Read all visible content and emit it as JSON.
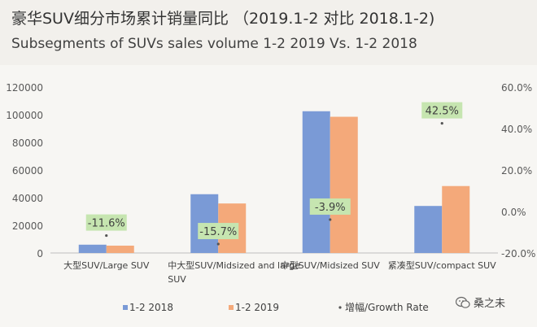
{
  "header": {
    "title": "豪华SUV细分市场累计销量同比 （2019.1-2 对比 2018.1-2)",
    "subtitle": "Subsegments of SUVs sales volume  1-2 2019  Vs.  1-2 2018"
  },
  "watermark": {
    "text": "桑之未",
    "icon": "wechat-icon"
  },
  "colors": {
    "s2018": "#7a9ad6",
    "s2019": "#f4a97a",
    "label_bg": "#c6e5b0",
    "marker": "#555555"
  },
  "chart_data": {
    "type": "bar",
    "categories": [
      "大型SUV/Large SUV",
      "中大型SUV/Midsized and large SUV",
      "中型SUV/Midsized SUV",
      "紧凑型SUV/compact SUV"
    ],
    "series": [
      {
        "name": "1-2 2018",
        "values": [
          6000,
          42500,
          102500,
          34000
        ]
      },
      {
        "name": "1-2 2019",
        "values": [
          5300,
          35800,
          98500,
          48400
        ]
      },
      {
        "name": "增幅/Growth Rate",
        "axis": "right",
        "values": [
          -11.6,
          -15.7,
          -3.9,
          42.5
        ],
        "labels": [
          "-11.6%",
          "-15.7%",
          "-3.9%",
          "42.5%"
        ]
      }
    ],
    "ylim": [
      0,
      120000
    ],
    "yticks": [
      "0",
      "20000",
      "40000",
      "60000",
      "80000",
      "100000",
      "120000"
    ],
    "y2lim": [
      -20,
      60
    ],
    "y2ticks": [
      "-20.0%",
      "0.0%",
      "20.0%",
      "40.0%",
      "60.0%"
    ],
    "legend": {
      "position": "bottom",
      "entries": [
        "1-2 2018",
        "1-2 2019",
        "增幅/Growth Rate"
      ]
    }
  }
}
